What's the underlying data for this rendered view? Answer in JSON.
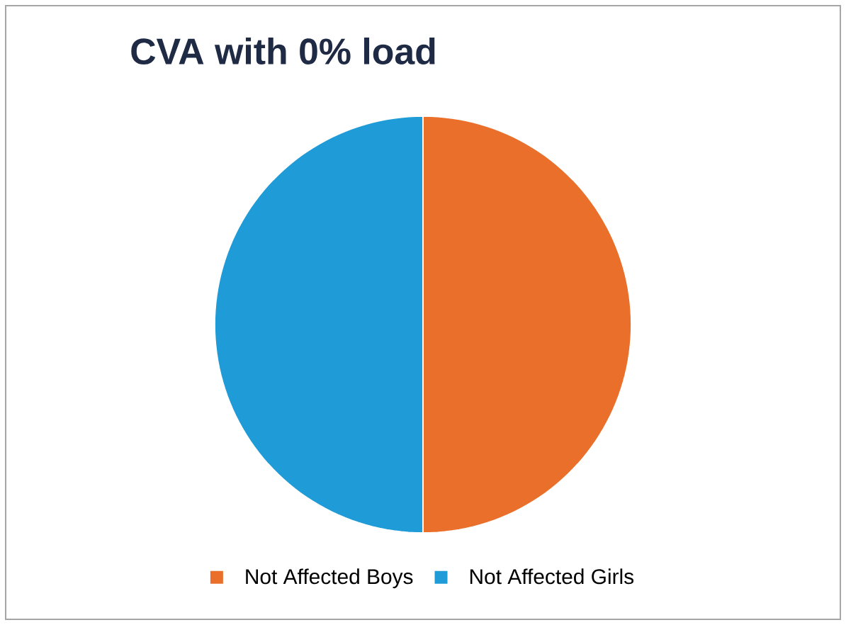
{
  "chart_data": {
    "type": "pie",
    "title": "CVA with 0% load",
    "categories": [
      "Not Affected Boys",
      "Not Affected Girls"
    ],
    "values": [
      50,
      50
    ],
    "colors": [
      "#ea6f2b",
      "#1f9bd7"
    ],
    "legend": "bottom"
  }
}
